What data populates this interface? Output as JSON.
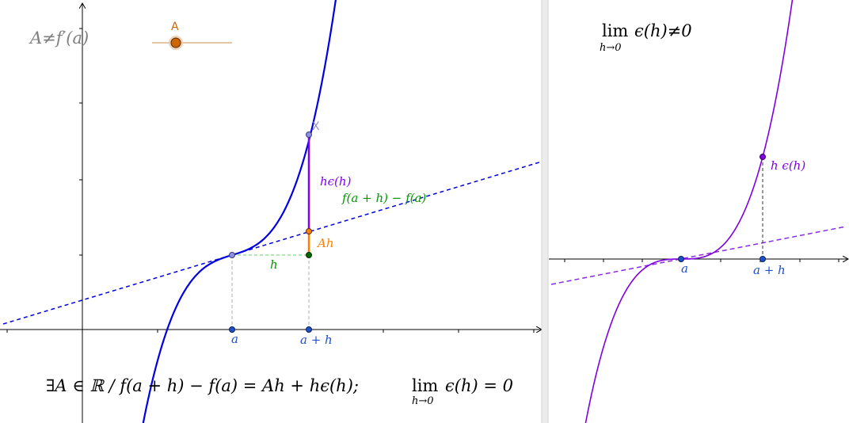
{
  "left_panel": {
    "title": "A≠f′(a)",
    "slider_label": "A",
    "point_x_label": "X",
    "h_epsilon_label": "hϵ(h)",
    "difference_label": "f(a + h) − f(a)",
    "ah_label": "Ah",
    "h_label": "h",
    "a_label": "a",
    "a_plus_h_label": "a + h",
    "formula": {
      "main": "∃A ∈ ℝ  /  f(a + h) − f(a) = Ah + hϵ(h);",
      "lim": "lim",
      "lim_sub": "h→0",
      "lim_tail": "ϵ(h) = 0"
    }
  },
  "right_panel": {
    "title_lim": "lim",
    "title_sub": "h→0",
    "title_tail": "ϵ(h)≠0",
    "h_epsilon_label": "h ϵ(h)",
    "a_label": "a",
    "a_plus_h_label": "a + h"
  },
  "colors": {
    "curve_left": "#0000e0",
    "curve_right": "#7f00e0",
    "tangent_left": "#0000e0",
    "tangent_right": "#8a2be2",
    "increment_green": "#009900",
    "segment_orange": "#ff8000",
    "segment_purple": "#8000ff",
    "point_blue": "#1e50c8",
    "slider_orange": "#cc6600",
    "text_gray": "#808080"
  }
}
